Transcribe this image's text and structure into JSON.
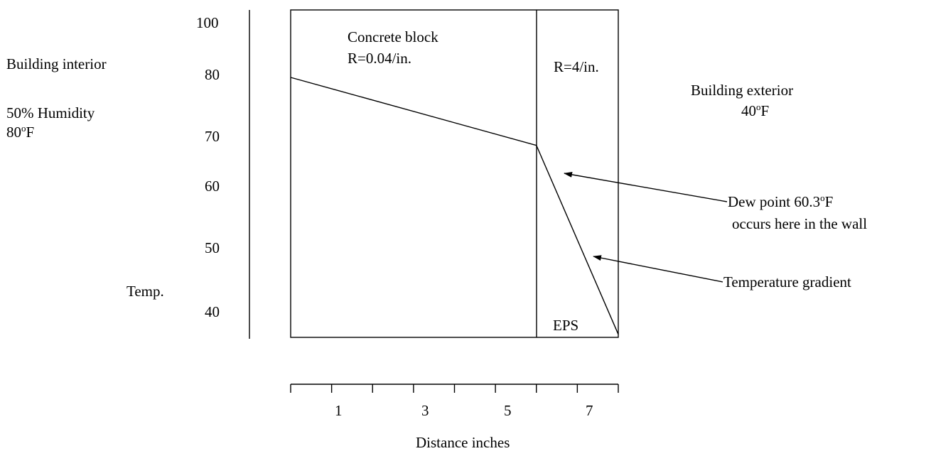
{
  "chart_data": {
    "type": "line",
    "ylabel": "Temp.",
    "xlabel": "Distance inches",
    "y_tick_labels": [
      "100",
      "80",
      "70",
      "60",
      "50",
      "40"
    ],
    "x_tick_labels": [
      "1",
      "3",
      "5",
      "7"
    ],
    "series": [
      {
        "x": [
          0,
          6,
          8
        ],
        "y": [
          79.2,
          68.3,
          38
        ]
      }
    ]
  },
  "labels": {
    "interior": "Building interior",
    "humidity": "50% Humidity",
    "interior_temp_value": "80",
    "interior_temp_sup": "o",
    "interior_temp_unit": "F",
    "exterior": "Building exterior",
    "exterior_temp_value": "40",
    "exterior_temp_sup": "o",
    "exterior_temp_unit": "F",
    "concrete_name": "Concrete block",
    "concrete_r": "R=0.04/in.",
    "eps_r": "R=4/in.",
    "eps_name": "EPS",
    "dew_line1_value": "Dew point 60.3",
    "dew_line1_sup": "o",
    "dew_line1_unit": "F",
    "dew_line2": "occurs here in the wall",
    "gradient": "Temperature gradient"
  },
  "colors": {
    "ink": "#000000",
    "background": "#ffffff"
  }
}
